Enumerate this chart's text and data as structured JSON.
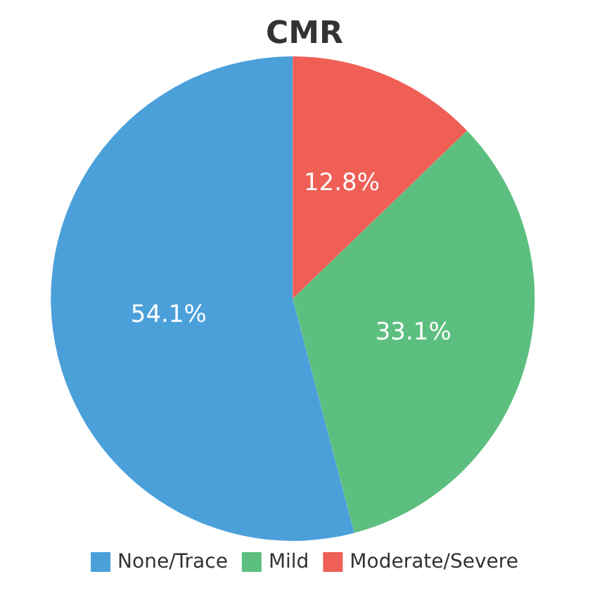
{
  "chart_data": {
    "type": "pie",
    "title": "CMR",
    "categories": [
      "None/Trace",
      "Mild",
      "Moderate/Severe"
    ],
    "values": [
      54.1,
      33.1,
      12.8
    ],
    "colors": [
      "#4ba0da",
      "#5dbf7f",
      "#ef5f56"
    ],
    "value_labels": [
      "54.1%",
      "33.1%",
      "12.8%"
    ],
    "legend": "bottom"
  }
}
